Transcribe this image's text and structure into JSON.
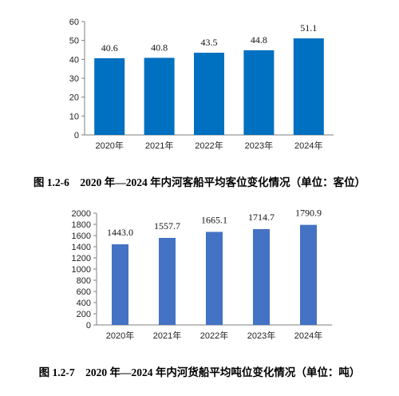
{
  "charts": [
    {
      "caption": "图 1.2-6　2020 年—2024 年内河客船平均客位变化情况（单位：客位）",
      "chart_data": {
        "type": "bar",
        "categories": [
          "2020年",
          "2021年",
          "2022年",
          "2023年",
          "2024年"
        ],
        "values": [
          40.6,
          40.8,
          43.5,
          44.8,
          51.1
        ],
        "value_labels": [
          "40.6",
          "40.8",
          "43.5",
          "44.8",
          "51.1"
        ],
        "ylim": [
          0,
          60
        ],
        "yticks": [
          0,
          10,
          20,
          30,
          40,
          50,
          60
        ],
        "grid": false,
        "bar_color": "#0070c0"
      }
    },
    {
      "caption": "图 1.2-7　2020 年—2024 年内河货船平均吨位变化情况（单位：吨）",
      "chart_data": {
        "type": "bar",
        "categories": [
          "2020年",
          "2021年",
          "2022年",
          "2023年",
          "2024年"
        ],
        "values": [
          1443.0,
          1557.7,
          1665.1,
          1714.7,
          1790.9
        ],
        "value_labels": [
          "1443.0",
          "1557.7",
          "1665.1",
          "1714.7",
          "1790.9"
        ],
        "ylim": [
          0,
          2000
        ],
        "yticks": [
          0,
          200,
          400,
          600,
          800,
          1000,
          1200,
          1400,
          1600,
          1800,
          2000
        ],
        "grid": false,
        "bar_color": "#4472c4"
      }
    }
  ]
}
